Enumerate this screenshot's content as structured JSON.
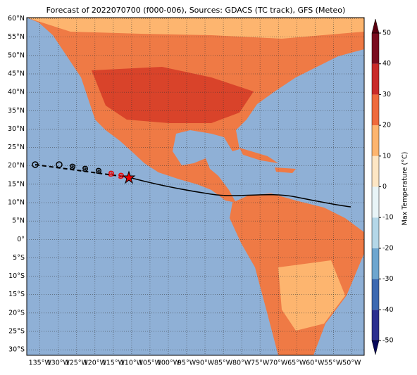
{
  "title": "Forecast of 2022070700 (f000-006), Sources: GDACS (TC track), GFS (Meteo)",
  "map": {
    "lonlim": [
      -138.6,
      -46.6
    ],
    "latlim": [
      -31.5,
      60.3
    ],
    "lat_ticks": [
      {
        "value": 60,
        "label": "60°N"
      },
      {
        "value": 55,
        "label": "55°N"
      },
      {
        "value": 50,
        "label": "50°N"
      },
      {
        "value": 45,
        "label": "45°N"
      },
      {
        "value": 40,
        "label": "40°N"
      },
      {
        "value": 35,
        "label": "35°N"
      },
      {
        "value": 30,
        "label": "30°N"
      },
      {
        "value": 25,
        "label": "25°N"
      },
      {
        "value": 20,
        "label": "20°N"
      },
      {
        "value": 15,
        "label": "15°N"
      },
      {
        "value": 10,
        "label": "10°N"
      },
      {
        "value": 5,
        "label": "5°N"
      },
      {
        "value": 0,
        "label": "0°"
      },
      {
        "value": -5,
        "label": "5°S"
      },
      {
        "value": -10,
        "label": "10°S"
      },
      {
        "value": -15,
        "label": "15°S"
      },
      {
        "value": -20,
        "label": "20°S"
      },
      {
        "value": -25,
        "label": "25°S"
      },
      {
        "value": -30,
        "label": "30°S"
      }
    ],
    "lon_ticks": [
      {
        "value": -135,
        "label": "135°W"
      },
      {
        "value": -130,
        "label": "130°W"
      },
      {
        "value": -125,
        "label": "125°W"
      },
      {
        "value": -120,
        "label": "120°W"
      },
      {
        "value": -115,
        "label": "115°W"
      },
      {
        "value": -110,
        "label": "110°W"
      },
      {
        "value": -105,
        "label": "105°W"
      },
      {
        "value": -100,
        "label": "100°W"
      },
      {
        "value": -95,
        "label": "95°W"
      },
      {
        "value": -90,
        "label": "90°W"
      },
      {
        "value": -85,
        "label": "85°W"
      },
      {
        "value": -80,
        "label": "80°W"
      },
      {
        "value": -75,
        "label": "75°W"
      },
      {
        "value": -70,
        "label": "70°W"
      },
      {
        "value": -65,
        "label": "65°W"
      },
      {
        "value": -60,
        "label": "60°W"
      },
      {
        "value": -55,
        "label": "55°W"
      },
      {
        "value": -50,
        "label": "50°W"
      }
    ]
  },
  "colorbar": {
    "label": "Max Temperature (°C)",
    "lim": [
      -50,
      50
    ],
    "ticks": [
      50,
      40,
      30,
      20,
      10,
      0,
      -10,
      -20,
      -30,
      -40,
      -50
    ],
    "colors": [
      "#08085a",
      "#2b2f8f",
      "#3c69b1",
      "#6ea6cf",
      "#b4d7e8",
      "#e8f4f7",
      "#fde6c4",
      "#fdb56f",
      "#ef6a3c",
      "#c92b29",
      "#7a0c1e",
      "#5a0010"
    ]
  }
}
